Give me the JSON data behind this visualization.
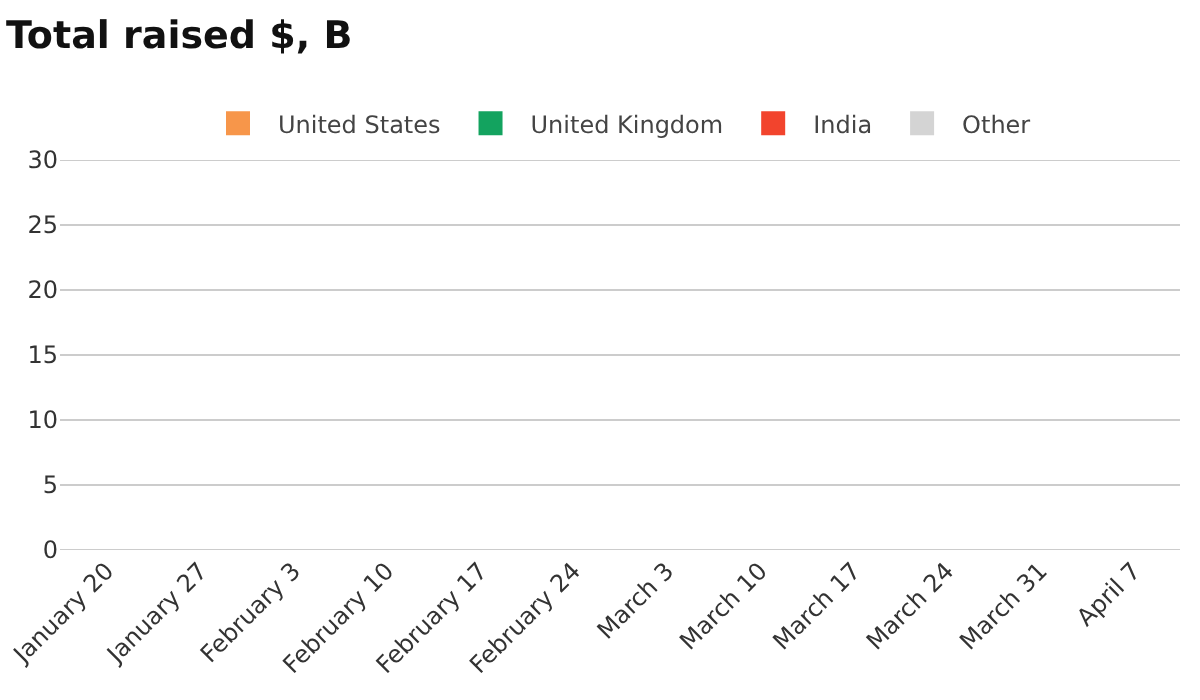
{
  "chart_data": {
    "type": "bar",
    "title": "Total raised $, B",
    "categories": [
      "January 20",
      "January 27",
      "February 3",
      "February 10",
      "February 17",
      "February 24",
      "March 3",
      "March 10",
      "March 17",
      "March 24",
      "March 31",
      "April 7"
    ],
    "series": [
      {
        "name": "United States",
        "color": "#f7964a",
        "values": [
          null,
          null,
          null,
          null,
          null,
          null,
          null,
          null,
          null,
          null,
          null,
          null
        ]
      },
      {
        "name": "United Kingdom",
        "color": "#13a35f",
        "values": [
          null,
          null,
          null,
          null,
          null,
          null,
          null,
          null,
          null,
          null,
          null,
          null
        ]
      },
      {
        "name": "India",
        "color": "#f2442d",
        "values": [
          null,
          null,
          null,
          null,
          null,
          null,
          null,
          null,
          null,
          null,
          null,
          null
        ]
      },
      {
        "name": "Other",
        "color": "#d4d4d4",
        "values": [
          null,
          null,
          null,
          null,
          null,
          null,
          null,
          null,
          null,
          null,
          null,
          null
        ]
      }
    ],
    "ylim": [
      0,
      30
    ],
    "yticks": [
      0,
      5,
      10,
      15,
      20,
      25,
      30
    ],
    "grid": "y",
    "legend": "top"
  }
}
